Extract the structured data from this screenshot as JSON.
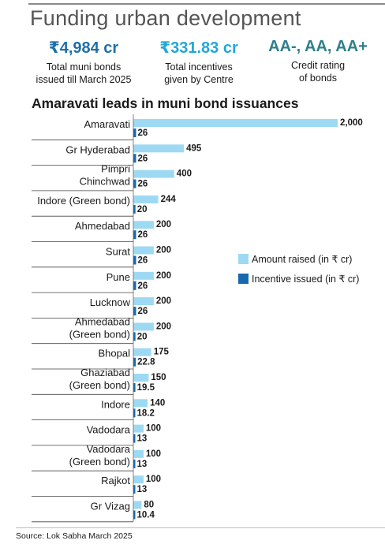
{
  "header": {
    "title": "Funding urban development"
  },
  "stats": [
    {
      "value": "₹4,984 cr",
      "caption_line1": "Total muni bonds",
      "caption_line2": "issued till March 2025",
      "color": "#1f6fa8"
    },
    {
      "value": "₹331.83 cr",
      "caption_line1": "Total incentives",
      "caption_line2": "given by Centre",
      "color": "#22a6d6"
    },
    {
      "value": "AA-, AA, AA+",
      "caption_line1": "Credit rating",
      "caption_line2": "of bonds",
      "color": "#2e7f8c"
    }
  ],
  "chart_data": {
    "type": "bar",
    "orientation": "horizontal",
    "title": "Amaravati leads in muni bond issuances",
    "categories": [
      [
        "Amaravati"
      ],
      [
        "Gr Hyderabad"
      ],
      [
        "Pimpri",
        "Chinchwad"
      ],
      [
        "Indore (Green bond)"
      ],
      [
        "Ahmedabad"
      ],
      [
        "Surat"
      ],
      [
        "Pune"
      ],
      [
        "Lucknow"
      ],
      [
        "Ahmedabad",
        "(Green bond)"
      ],
      [
        "Bhopal"
      ],
      [
        "Ghaziabad",
        "(Green bond)"
      ],
      [
        "Indore"
      ],
      [
        "Vadodara"
      ],
      [
        "Vadodara",
        "(Green bond)"
      ],
      [
        "Rajkot"
      ],
      [
        "Gr Vizag"
      ]
    ],
    "series": [
      {
        "name": "Amount raised (in ₹ cr)",
        "color": "#9dd9f3",
        "values": [
          2000,
          495,
          400,
          244,
          200,
          200,
          200,
          200,
          200,
          175,
          150,
          140,
          100,
          100,
          100,
          80
        ],
        "labels": [
          "2,000",
          "495",
          "400",
          "244",
          "200",
          "200",
          "200",
          "200",
          "200",
          "175",
          "150",
          "140",
          "100",
          "100",
          "100",
          "80"
        ]
      },
      {
        "name": "Incentive issued (in ₹ cr)",
        "color": "#1868ad",
        "values": [
          26,
          26,
          26,
          20,
          26,
          26,
          26,
          26,
          20,
          22.8,
          19.5,
          18.2,
          13,
          13,
          13,
          10.4
        ],
        "labels": [
          "26",
          "26",
          "26",
          "20",
          "26",
          "26",
          "26",
          "26",
          "20",
          "22.8",
          "19.5",
          "18.2",
          "13",
          "13",
          "13",
          "10.4"
        ]
      }
    ],
    "xlim": [
      0,
      2000
    ],
    "legend_position": "right"
  },
  "footer": {
    "source": "Source: Lok Sabha March 2025"
  }
}
